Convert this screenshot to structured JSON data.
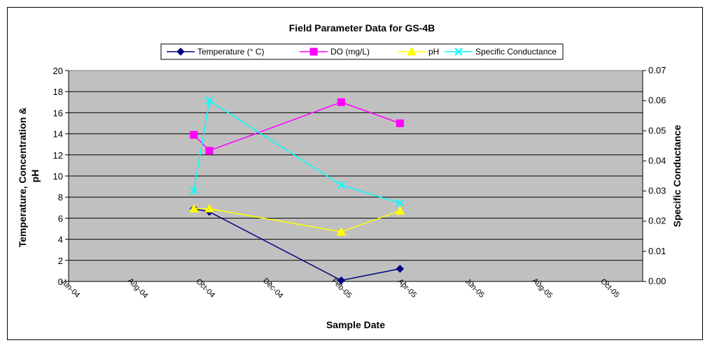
{
  "chart_data": {
    "type": "line",
    "title": "Field Parameter Data for GS-4B",
    "xlabel": "Sample Date",
    "ylabel": "Temperature, Concentration & pH",
    "y2label": "Specific Conductance",
    "ylim": [
      0,
      20
    ],
    "y2lim": [
      0,
      0.07
    ],
    "y_ticks": [
      "0",
      "2",
      "4",
      "6",
      "8",
      "10",
      "12",
      "14",
      "16",
      "18",
      "20"
    ],
    "y2_ticks": [
      "0.00",
      "0.01",
      "0.02",
      "0.03",
      "0.04",
      "0.05",
      "0.06",
      "0.07"
    ],
    "x_ticks": [
      "Jun-04",
      "Aug-04",
      "Oct-04",
      "Dec-04",
      "Feb-05",
      "Apr-05",
      "Jun-05",
      "Aug-05",
      "Oct-05"
    ],
    "x_tick_dates": [
      "2004-06-01",
      "2004-08-01",
      "2004-10-01",
      "2004-12-01",
      "2005-02-01",
      "2005-04-01",
      "2005-06-01",
      "2005-08-01",
      "2005-10-01"
    ],
    "xlim": [
      "2004-06-01",
      "2005-11-01"
    ],
    "plot_background": "#c0c0c0",
    "grid": "horizontal",
    "legend_position": "top",
    "series": [
      {
        "name": "Temperature (° C)",
        "axis": "left",
        "color": "#000080",
        "marker": "diamond",
        "x": [
          "2004-09-22",
          "2004-10-06",
          "2005-02-02",
          "2005-03-27"
        ],
        "values": [
          6.9,
          6.6,
          0.1,
          1.2
        ]
      },
      {
        "name": "DO (mg/L)",
        "axis": "left",
        "color": "#ff00ff",
        "marker": "square",
        "x": [
          "2004-09-22",
          "2004-10-06",
          "2005-02-02",
          "2005-03-27"
        ],
        "values": [
          13.9,
          12.4,
          17.0,
          15.0
        ]
      },
      {
        "name": "pH",
        "axis": "left",
        "color": "#ffff00",
        "marker": "triangle",
        "x": [
          "2004-09-22",
          "2004-10-06",
          "2005-02-02",
          "2005-03-27"
        ],
        "values": [
          6.9,
          6.9,
          4.7,
          6.7
        ]
      },
      {
        "name": "Specific Conductance",
        "axis": "right",
        "color": "#00ffff",
        "marker": "x",
        "x": [
          "2004-09-22",
          "2004-10-06",
          "2005-02-02",
          "2005-03-27"
        ],
        "values": [
          0.03,
          0.06,
          0.032,
          0.026
        ]
      }
    ]
  }
}
